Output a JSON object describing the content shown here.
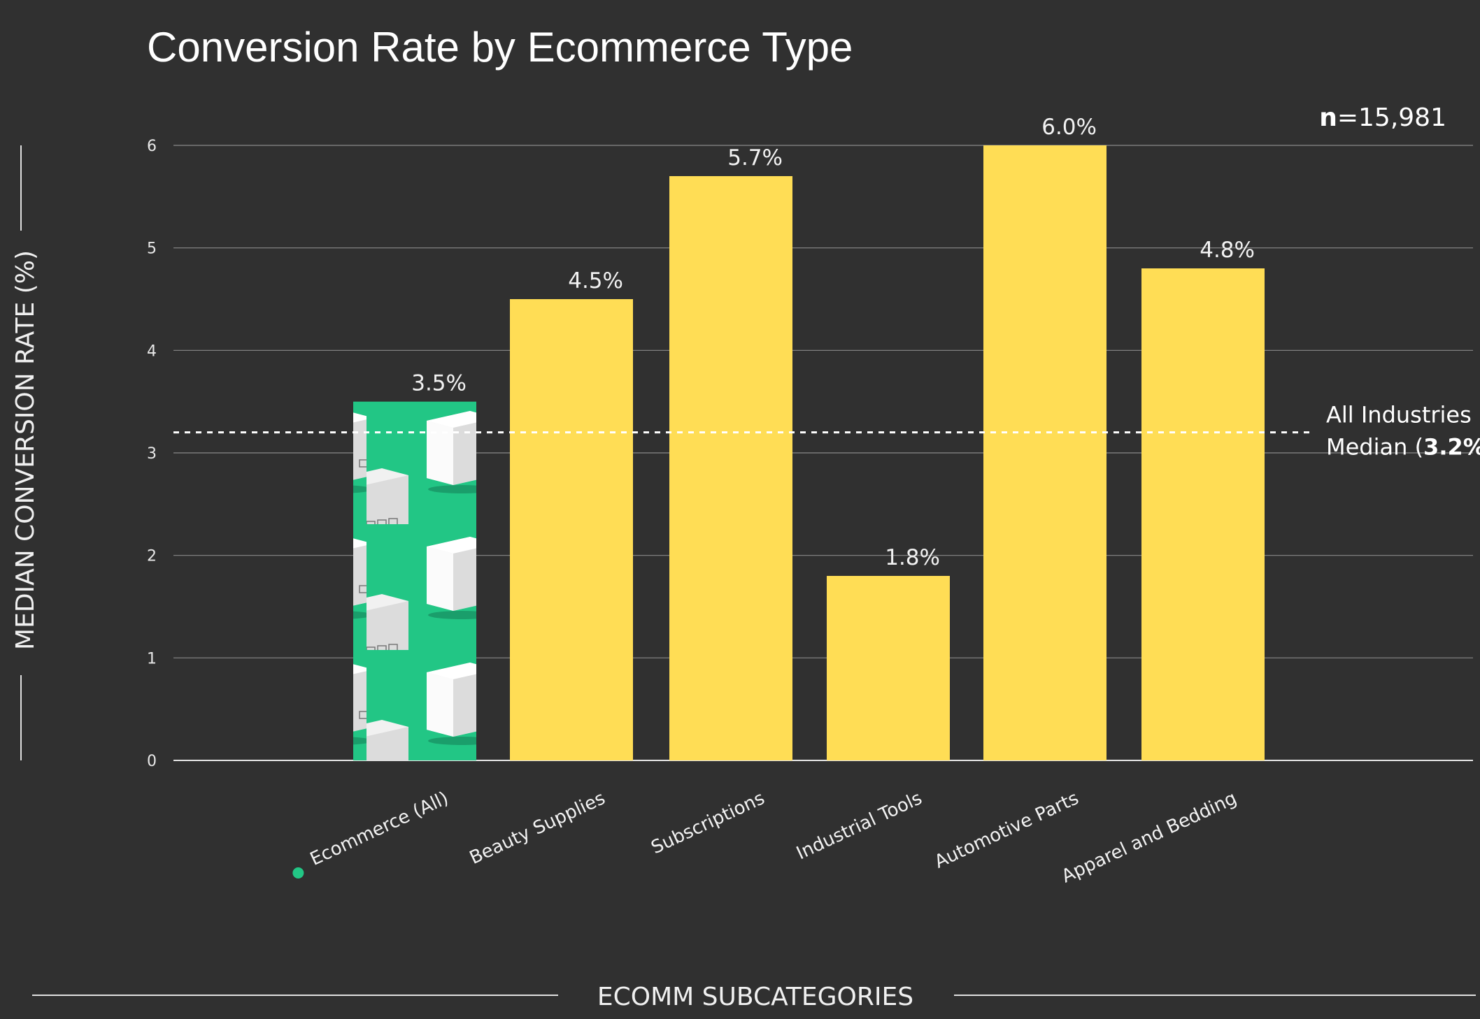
{
  "colors": {
    "background": "#303030",
    "bar": "#FFDD55",
    "highlight_bar": "#22C685",
    "text": "#FFFFFF",
    "grid": "#8A8A8A"
  },
  "chart_data": {
    "type": "bar",
    "title": "Conversion Rate by Ecommerce Type",
    "xlabel": "ECOMM SUBCATEGORIES",
    "ylabel": "MEDIAN CONVERSION RATE (%)",
    "ylim": [
      0,
      6
    ],
    "yticks": [
      "0",
      "1",
      "2",
      "3",
      "4",
      "5",
      "6"
    ],
    "grid": true,
    "categories": [
      "Ecommerce (All)",
      "Beauty Supplies",
      "Subscriptions",
      "Industrial Tools",
      "Automotive Parts",
      "Apparel and Bedding"
    ],
    "values": [
      3.5,
      4.5,
      5.7,
      1.8,
      6.0,
      4.8
    ],
    "value_labels": [
      "3.5%",
      "4.5%",
      "5.7%",
      "1.8%",
      "6.0%",
      "4.8%"
    ],
    "highlight_category": "Ecommerce (All)",
    "highlight_icon": "box-pattern",
    "reference_line": {
      "value": 3.2,
      "label_line1": "All Industries",
      "label_prefix": "Median (",
      "label_value": "3.2%",
      "label_suffix": ")"
    },
    "sample_size": {
      "prefix": "n",
      "value": "=15,981"
    }
  }
}
